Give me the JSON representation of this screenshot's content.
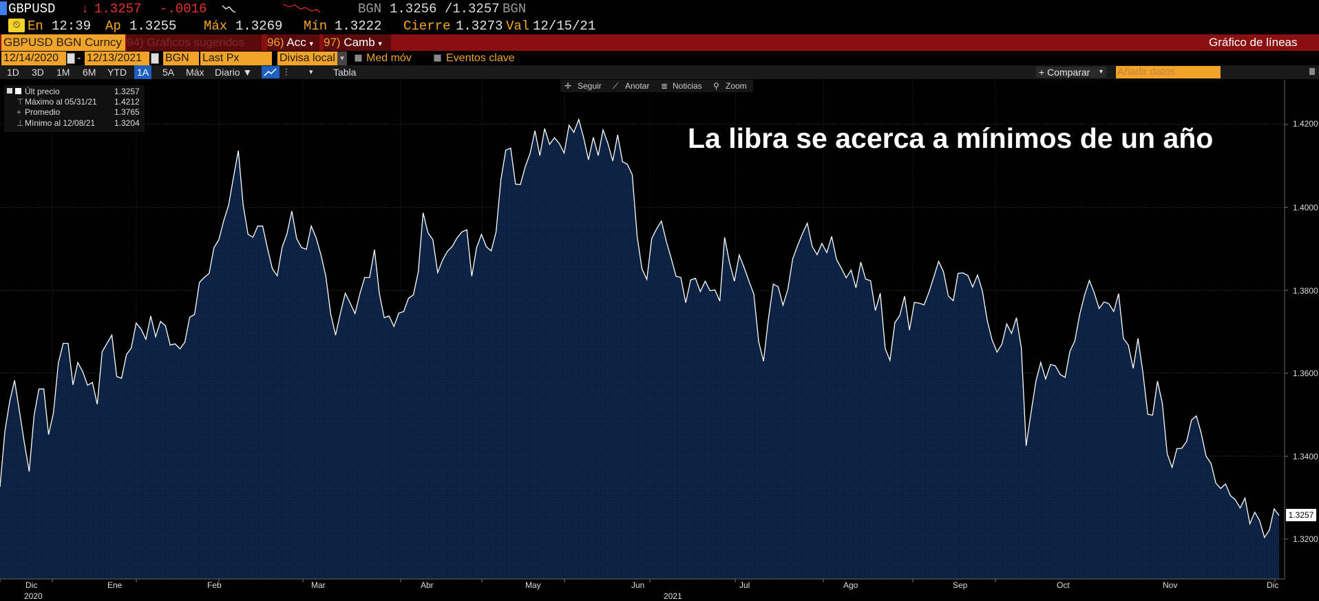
{
  "ticker": {
    "symbol": "GBPUSD",
    "price_arrow": "↓",
    "price": "1.3257",
    "change": "-.0016",
    "source1": "BGN",
    "bid_ask": "1.3256 /1.3257",
    "source2": "BGN"
  },
  "quote": {
    "time_label": "En",
    "time": "12:39",
    "open_label": "Ap",
    "open": "1.3255",
    "high_label": "Máx",
    "high": "1.3269",
    "low_label": "Mín",
    "low": "1.3222",
    "close_label": "Cierre",
    "close": "1.3273",
    "val_label": "Val",
    "val": "12/15/21"
  },
  "menubar": {
    "security": "GBPUSD BGN Curncy",
    "suggested_num": "94)",
    "suggested": "Gráficos sugeridos",
    "actions_num": "96)",
    "actions": "Acc",
    "change_num": "97)",
    "change": "Camb",
    "chart_type": "Gráfico de líneas"
  },
  "settings": {
    "start_date": "12/14/2020",
    "end_date": "12/13/2021",
    "source": "BGN",
    "field": "Last Px",
    "currency": "Divisa local",
    "moving_avg": "Med móv",
    "key_events": "Eventos clave"
  },
  "period": {
    "options": [
      "1D",
      "3D",
      "1M",
      "6M",
      "YTD",
      "1A",
      "5A",
      "Máx"
    ],
    "active": "1A",
    "frequency": "Diario ▼",
    "table": "Tabla",
    "compare": "+ Comparar",
    "add_data_placeholder": "Añadir datos"
  },
  "tools": {
    "follow": "Seguir",
    "annotate": "Anotar",
    "news": "Noticias",
    "zoom": "Zoom"
  },
  "legend": {
    "last_label": "Últ precio",
    "last_value": "1.3257",
    "max_label": "Máximo al 05/31/21",
    "max_value": "1.4212",
    "avg_label": "Promedio",
    "avg_value": "1.3765",
    "min_label": "Mínimo al 12/08/21",
    "min_value": "1.3204"
  },
  "headline": "La libra se acerca a mínimos de un año",
  "last_price_tag": "1.3257",
  "colors": {
    "menubar": "#8a0f10",
    "orange": "#f2a32a",
    "area_fill": "#0c2140",
    "line": "#ffffff",
    "accent_blue": "#3f7ee8"
  },
  "chart_data": {
    "type": "area",
    "title": "La libra se acerca a mínimos de un año",
    "xlabel": "",
    "ylabel": "",
    "ylim": [
      1.311,
      1.43
    ],
    "y_ticks": [
      "1.4200",
      "1.4000",
      "1.3800",
      "1.3600",
      "1.3400",
      "1.3200"
    ],
    "x_ticks": [
      "Dic",
      "Ene",
      "Feb",
      "Mar",
      "Abr",
      "May",
      "Jun",
      "Jul",
      "Ago",
      "Sep",
      "Oct",
      "Nov",
      "Dic"
    ],
    "x_year_labels": [
      "2020",
      "2021"
    ],
    "grid": true,
    "series": [
      {
        "name": "GBPUSD BGN Curncy",
        "values": [
          1.3326,
          1.346,
          1.3532,
          1.3583,
          1.3508,
          1.3433,
          1.3363,
          1.3498,
          1.3562,
          1.3562,
          1.3452,
          1.3505,
          1.3625,
          1.3672,
          1.3672,
          1.3572,
          1.3626,
          1.3604,
          1.3571,
          1.3578,
          1.3525,
          1.3652,
          1.3672,
          1.3692,
          1.3592,
          1.3588,
          1.3645,
          1.3661,
          1.3721,
          1.3707,
          1.3682,
          1.3738,
          1.3688,
          1.3725,
          1.3715,
          1.3668,
          1.3671,
          1.3659,
          1.3675,
          1.3735,
          1.3742,
          1.3819,
          1.3831,
          1.3841,
          1.3903,
          1.3922,
          1.3968,
          1.4005,
          1.4072,
          1.4137,
          1.4006,
          1.3935,
          1.3928,
          1.3955,
          1.3955,
          1.3901,
          1.3852,
          1.3835,
          1.3903,
          1.3936,
          1.3991,
          1.3925,
          1.3903,
          1.3899,
          1.3955,
          1.3927,
          1.3885,
          1.3834,
          1.3743,
          1.3692,
          1.3745,
          1.3793,
          1.3769,
          1.3744,
          1.3792,
          1.3831,
          1.3831,
          1.3898,
          1.3793,
          1.3734,
          1.3738,
          1.3713,
          1.3745,
          1.3749,
          1.3781,
          1.3789,
          1.3845,
          1.3987,
          1.3939,
          1.3922,
          1.3843,
          1.3873,
          1.3894,
          1.3906,
          1.3927,
          1.3941,
          1.3946,
          1.3834,
          1.3903,
          1.3935,
          1.3905,
          1.3895,
          1.3941,
          1.4068,
          1.4138,
          1.4143,
          1.4056,
          1.4055,
          1.4098,
          1.413,
          1.4185,
          1.4125,
          1.419,
          1.4152,
          1.4168,
          1.4154,
          1.4131,
          1.4198,
          1.4181,
          1.4212,
          1.4168,
          1.4115,
          1.4169,
          1.4125,
          1.4187,
          1.4154,
          1.4112,
          1.4175,
          1.411,
          1.4104,
          1.4079,
          1.3931,
          1.3852,
          1.3826,
          1.3925,
          1.3948,
          1.3967,
          1.3918,
          1.3878,
          1.3834,
          1.3831,
          1.377,
          1.3825,
          1.3829,
          1.3797,
          1.3822,
          1.3799,
          1.3801,
          1.3774,
          1.3928,
          1.3867,
          1.3822,
          1.3885,
          1.3855,
          1.3822,
          1.3791,
          1.3676,
          1.3629,
          1.3731,
          1.3815,
          1.3809,
          1.3764,
          1.3803,
          1.3876,
          1.3908,
          1.3937,
          1.3962,
          1.3906,
          1.3886,
          1.3913,
          1.3891,
          1.393,
          1.3875,
          1.3853,
          1.383,
          1.3849,
          1.3806,
          1.3868,
          1.3827,
          1.3823,
          1.3751,
          1.3793,
          1.366,
          1.3631,
          1.3722,
          1.3739,
          1.3786,
          1.3704,
          1.3771,
          1.3769,
          1.3765,
          1.3795,
          1.3832,
          1.387,
          1.3845,
          1.3786,
          1.3775,
          1.3841,
          1.3842,
          1.3836,
          1.3808,
          1.3837,
          1.3798,
          1.3727,
          1.368,
          1.3651,
          1.367,
          1.3719,
          1.3696,
          1.3734,
          1.3661,
          1.3425,
          1.3505,
          1.3581,
          1.3626,
          1.3586,
          1.3621,
          1.3618,
          1.3597,
          1.359,
          1.3653,
          1.3678,
          1.3741,
          1.3788,
          1.3824,
          1.3794,
          1.3756,
          1.3772,
          1.3768,
          1.3749,
          1.3792,
          1.3684,
          1.3668,
          1.3612,
          1.3684,
          1.3602,
          1.3501,
          1.3499,
          1.3581,
          1.3528,
          1.3406,
          1.3373,
          1.3418,
          1.3419,
          1.3436,
          1.3487,
          1.3497,
          1.3455,
          1.34,
          1.3383,
          1.3335,
          1.3322,
          1.3333,
          1.3305,
          1.3295,
          1.3275,
          1.3299,
          1.3237,
          1.3265,
          1.3245,
          1.3204,
          1.3222,
          1.3273,
          1.3257
        ]
      }
    ]
  }
}
